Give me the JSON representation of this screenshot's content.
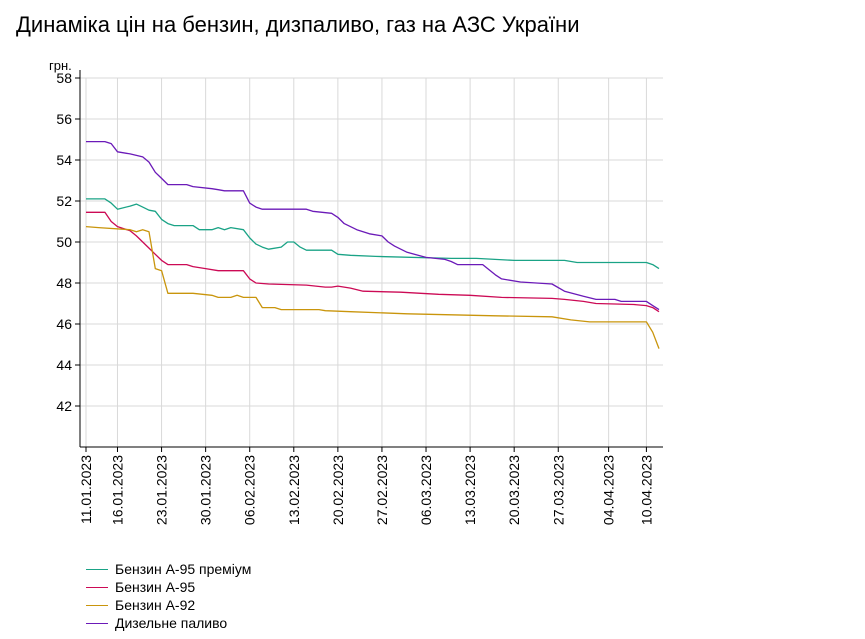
{
  "chart_data": {
    "type": "line",
    "title": "Динаміка цін на бензин, дизпаливо, газ на АЗС України",
    "ylabel": "грн.",
    "xlabel": "",
    "ylim": [
      40,
      58
    ],
    "yticks": [
      42,
      44,
      46,
      48,
      50,
      52,
      54,
      56,
      58
    ],
    "xlim": [
      "2023-01-11",
      "2023-04-12"
    ],
    "xticks": [
      "11.01.2023",
      "16.01.2023",
      "23.01.2023",
      "30.01.2023",
      "06.02.2023",
      "13.02.2023",
      "20.02.2023",
      "27.02.2023",
      "06.03.2023",
      "13.03.2023",
      "20.03.2023",
      "27.03.2023",
      "04.04.2023",
      "10.04.2023"
    ],
    "grid": true,
    "legend_position": "bottom-left",
    "series": [
      {
        "name": "Бензин А-95 преміум",
        "color": "#1aa386",
        "points": [
          [
            "2023-01-11",
            52.1
          ],
          [
            "2023-01-14",
            52.1
          ],
          [
            "2023-01-15",
            51.9
          ],
          [
            "2023-01-16",
            51.6
          ],
          [
            "2023-01-18",
            51.75
          ],
          [
            "2023-01-19",
            51.85
          ],
          [
            "2023-01-20",
            51.7
          ],
          [
            "2023-01-21",
            51.55
          ],
          [
            "2023-01-22",
            51.5
          ],
          [
            "2023-01-23",
            51.1
          ],
          [
            "2023-01-24",
            50.9
          ],
          [
            "2023-01-25",
            50.8
          ],
          [
            "2023-01-28",
            50.8
          ],
          [
            "2023-01-29",
            50.6
          ],
          [
            "2023-01-31",
            50.6
          ],
          [
            "2023-02-01",
            50.7
          ],
          [
            "2023-02-02",
            50.6
          ],
          [
            "2023-02-03",
            50.7
          ],
          [
            "2023-02-05",
            50.6
          ],
          [
            "2023-02-06",
            50.2
          ],
          [
            "2023-02-07",
            49.9
          ],
          [
            "2023-02-08",
            49.75
          ],
          [
            "2023-02-09",
            49.65
          ],
          [
            "2023-02-11",
            49.75
          ],
          [
            "2023-02-12",
            50.0
          ],
          [
            "2023-02-13",
            50.0
          ],
          [
            "2023-02-14",
            49.75
          ],
          [
            "2023-02-15",
            49.6
          ],
          [
            "2023-02-19",
            49.6
          ],
          [
            "2023-02-20",
            49.4
          ],
          [
            "2023-02-22",
            49.35
          ],
          [
            "2023-02-26",
            49.3
          ],
          [
            "2023-03-10",
            49.2
          ],
          [
            "2023-03-14",
            49.2
          ],
          [
            "2023-03-20",
            49.1
          ],
          [
            "2023-03-28",
            49.1
          ],
          [
            "2023-03-30",
            49.0
          ],
          [
            "2023-04-10",
            49.0
          ],
          [
            "2023-04-11",
            48.9
          ],
          [
            "2023-04-12",
            48.7
          ]
        ]
      },
      {
        "name": "Бензин А-95",
        "color": "#cc0a55",
        "points": [
          [
            "2023-01-11",
            51.45
          ],
          [
            "2023-01-14",
            51.45
          ],
          [
            "2023-01-15",
            51.0
          ],
          [
            "2023-01-16",
            50.75
          ],
          [
            "2023-01-18",
            50.55
          ],
          [
            "2023-01-19",
            50.3
          ],
          [
            "2023-01-20",
            50.0
          ],
          [
            "2023-01-21",
            49.7
          ],
          [
            "2023-01-22",
            49.4
          ],
          [
            "2023-01-23",
            49.1
          ],
          [
            "2023-01-24",
            48.9
          ],
          [
            "2023-01-27",
            48.9
          ],
          [
            "2023-01-28",
            48.8
          ],
          [
            "2023-01-30",
            48.7
          ],
          [
            "2023-02-01",
            48.6
          ],
          [
            "2023-02-04",
            48.6
          ],
          [
            "2023-02-05",
            48.6
          ],
          [
            "2023-02-06",
            48.2
          ],
          [
            "2023-02-07",
            48.0
          ],
          [
            "2023-02-09",
            47.95
          ],
          [
            "2023-02-15",
            47.9
          ],
          [
            "2023-02-18",
            47.8
          ],
          [
            "2023-02-19",
            47.8
          ],
          [
            "2023-02-20",
            47.85
          ],
          [
            "2023-02-22",
            47.75
          ],
          [
            "2023-02-24",
            47.6
          ],
          [
            "2023-03-02",
            47.55
          ],
          [
            "2023-03-08",
            47.45
          ],
          [
            "2023-03-13",
            47.4
          ],
          [
            "2023-03-18",
            47.3
          ],
          [
            "2023-03-26",
            47.25
          ],
          [
            "2023-03-28",
            47.2
          ],
          [
            "2023-03-31",
            47.1
          ],
          [
            "2023-04-02",
            47.0
          ],
          [
            "2023-04-08",
            46.95
          ],
          [
            "2023-04-10",
            46.9
          ],
          [
            "2023-04-11",
            46.8
          ],
          [
            "2023-04-12",
            46.6
          ]
        ]
      },
      {
        "name": "Бензин А-92",
        "color": "#c9950c",
        "points": [
          [
            "2023-01-11",
            50.75
          ],
          [
            "2023-01-13",
            50.7
          ],
          [
            "2023-01-18",
            50.6
          ],
          [
            "2023-01-19",
            50.5
          ],
          [
            "2023-01-20",
            50.6
          ],
          [
            "2023-01-21",
            50.5
          ],
          [
            "2023-01-22",
            48.7
          ],
          [
            "2023-01-23",
            48.6
          ],
          [
            "2023-01-24",
            47.5
          ],
          [
            "2023-01-28",
            47.5
          ],
          [
            "2023-01-31",
            47.4
          ],
          [
            "2023-02-01",
            47.3
          ],
          [
            "2023-02-03",
            47.3
          ],
          [
            "2023-02-04",
            47.4
          ],
          [
            "2023-02-05",
            47.3
          ],
          [
            "2023-02-07",
            47.3
          ],
          [
            "2023-02-08",
            46.8
          ],
          [
            "2023-02-10",
            46.8
          ],
          [
            "2023-02-11",
            46.7
          ],
          [
            "2023-02-17",
            46.7
          ],
          [
            "2023-02-18",
            46.65
          ],
          [
            "2023-02-22",
            46.6
          ],
          [
            "2023-03-03",
            46.5
          ],
          [
            "2023-03-10",
            46.45
          ],
          [
            "2023-03-17",
            46.4
          ],
          [
            "2023-03-26",
            46.35
          ],
          [
            "2023-03-29",
            46.2
          ],
          [
            "2023-04-01",
            46.1
          ],
          [
            "2023-04-10",
            46.1
          ],
          [
            "2023-04-11",
            45.6
          ],
          [
            "2023-04-12",
            44.8
          ]
        ]
      },
      {
        "name": "Дизельне паливо",
        "color": "#6b1ab8",
        "points": [
          [
            "2023-01-11",
            54.9
          ],
          [
            "2023-01-14",
            54.9
          ],
          [
            "2023-01-15",
            54.8
          ],
          [
            "2023-01-16",
            54.4
          ],
          [
            "2023-01-18",
            54.3
          ],
          [
            "2023-01-20",
            54.15
          ],
          [
            "2023-01-21",
            53.9
          ],
          [
            "2023-01-22",
            53.4
          ],
          [
            "2023-01-23",
            53.1
          ],
          [
            "2023-01-24",
            52.8
          ],
          [
            "2023-01-27",
            52.8
          ],
          [
            "2023-01-28",
            52.7
          ],
          [
            "2023-01-31",
            52.6
          ],
          [
            "2023-02-01",
            52.55
          ],
          [
            "2023-02-02",
            52.5
          ],
          [
            "2023-02-05",
            52.5
          ],
          [
            "2023-02-06",
            51.9
          ],
          [
            "2023-02-07",
            51.7
          ],
          [
            "2023-02-08",
            51.6
          ],
          [
            "2023-02-15",
            51.6
          ],
          [
            "2023-02-16",
            51.5
          ],
          [
            "2023-02-19",
            51.4
          ],
          [
            "2023-02-20",
            51.2
          ],
          [
            "2023-02-21",
            50.9
          ],
          [
            "2023-02-23",
            50.6
          ],
          [
            "2023-02-25",
            50.4
          ],
          [
            "2023-02-27",
            50.3
          ],
          [
            "2023-02-28",
            50.0
          ],
          [
            "2023-03-01",
            49.8
          ],
          [
            "2023-03-03",
            49.5
          ],
          [
            "2023-03-06",
            49.25
          ],
          [
            "2023-03-09",
            49.15
          ],
          [
            "2023-03-10",
            49.05
          ],
          [
            "2023-03-11",
            48.9
          ],
          [
            "2023-03-15",
            48.9
          ],
          [
            "2023-03-17",
            48.4
          ],
          [
            "2023-03-18",
            48.2
          ],
          [
            "2023-03-21",
            48.05
          ],
          [
            "2023-03-26",
            47.95
          ],
          [
            "2023-03-28",
            47.6
          ],
          [
            "2023-03-31",
            47.35
          ],
          [
            "2023-04-02",
            47.2
          ],
          [
            "2023-04-05",
            47.2
          ],
          [
            "2023-04-06",
            47.1
          ],
          [
            "2023-04-10",
            47.1
          ],
          [
            "2023-04-11",
            46.9
          ],
          [
            "2023-04-12",
            46.7
          ]
        ]
      }
    ]
  }
}
